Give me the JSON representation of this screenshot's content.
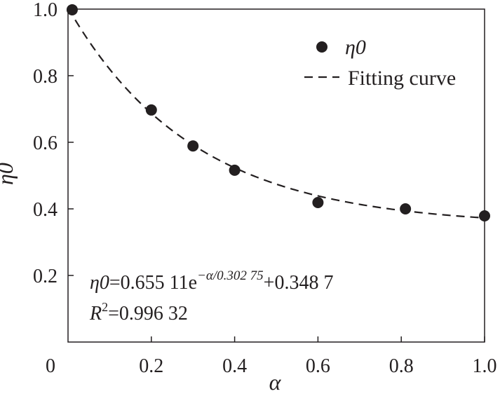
{
  "chart_data": {
    "type": "scatter",
    "xlabel": "α",
    "ylabel": "η0",
    "xlim": [
      0,
      1.0
    ],
    "ylim": [
      0.2,
      1.0
    ],
    "x_ticks": [
      "0",
      "0.2",
      "0.4",
      "0.6",
      "0.8",
      "1.0"
    ],
    "x_tick_values": [
      0,
      0.2,
      0.4,
      0.6,
      0.8,
      1.0
    ],
    "y_ticks": [
      "0.2",
      "0.4",
      "0.6",
      "0.8",
      "1.0"
    ],
    "y_tick_values": [
      0.2,
      0.4,
      0.6,
      0.8,
      1.0
    ],
    "grid": false,
    "legend_position": "top-right",
    "series": [
      {
        "name": "η0",
        "style": "points",
        "x": [
          0.01,
          0.2,
          0.3,
          0.4,
          0.6,
          0.81,
          1.0
        ],
        "y": [
          0.998,
          0.697,
          0.589,
          0.516,
          0.419,
          0.4,
          0.379
        ]
      },
      {
        "name": "Fitting curve",
        "style": "dashed",
        "equation": {
          "a": 0.65511,
          "t": 0.30275,
          "c": 0.3487
        }
      }
    ],
    "annotations": {
      "equation_prefix": "η0",
      "equation_middle": "=0.655 11e",
      "equation_exponent": "−α/0.302 75",
      "equation_suffix": "+0.348 7",
      "r2_symbol": "R",
      "r2_power": "2",
      "r2_value": "=0.996 32"
    }
  },
  "colors": {
    "ink": "#231f20"
  }
}
